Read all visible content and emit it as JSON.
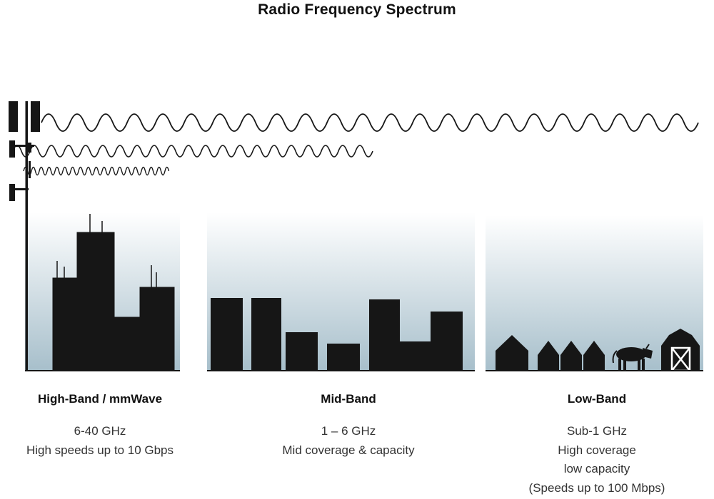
{
  "title": "Radio Frequency Spectrum",
  "sections": [
    {
      "name": "High-Band / mmWave",
      "lines": [
        "6-40 GHz",
        "High speeds up to 10 Gbps"
      ]
    },
    {
      "name": "Mid-Band",
      "lines": [
        "1 – 6 GHz",
        "Mid coverage & capacity"
      ]
    },
    {
      "name": "Low-Band",
      "lines": [
        "Sub-1 GHz",
        "High coverage",
        "low capacity",
        "(Speeds up to 100 Mbps)"
      ]
    }
  ],
  "icons": {
    "cell_tower": "cell-tower",
    "low_band_wave": "long-wavelength-wave",
    "mid_band_wave": "medium-wavelength-wave",
    "high_band_wave": "short-wavelength-wave",
    "city_skyline": "skyscraper-buildings",
    "town_skyline": "mid-rise-buildings",
    "rural_scene": "houses-cow-barn"
  },
  "colors": {
    "silhouette": "#161616",
    "gradient_bottom": "#a7bfcb",
    "heading_text": "#111111",
    "body_text": "#333333"
  }
}
